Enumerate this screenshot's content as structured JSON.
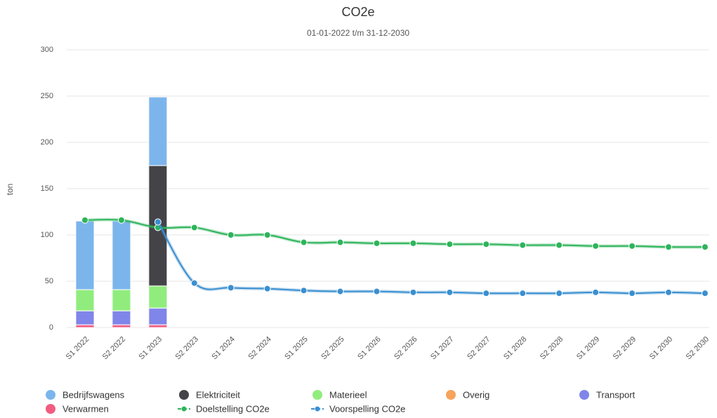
{
  "chart_data": {
    "type": "bar",
    "title": "CO2e",
    "subtitle": "01-01-2022 t/m 31-12-2030",
    "y_label": "ton",
    "categories": [
      "S1 2022",
      "S2 2022",
      "S1 2023",
      "S2 2023",
      "S1 2024",
      "S2 2024",
      "S1 2025",
      "S2 2025",
      "S1 2026",
      "S2 2026",
      "S1 2027",
      "S2 2027",
      "S1 2028",
      "S2 2028",
      "S1 2029",
      "S2 2029",
      "S1 2030",
      "S2 2030"
    ],
    "ylim": [
      0,
      300
    ],
    "yticks": [
      0,
      50,
      100,
      150,
      200,
      250,
      300
    ],
    "grid": true,
    "stacked": true,
    "legend": "bottom",
    "series": [
      {
        "name": "Bedrijfswagens",
        "type": "bar",
        "color": "#7cb5ec",
        "values": [
          74,
          74,
          74,
          null,
          null,
          null,
          null,
          null,
          null,
          null,
          null,
          null,
          null,
          null,
          null,
          null,
          null,
          null
        ]
      },
      {
        "name": "Elektriciteit",
        "type": "bar",
        "color": "#434348",
        "values": [
          0,
          0,
          130,
          null,
          null,
          null,
          null,
          null,
          null,
          null,
          null,
          null,
          null,
          null,
          null,
          null,
          null,
          null
        ]
      },
      {
        "name": "Materieel",
        "type": "bar",
        "color": "#90ed7d",
        "values": [
          23,
          23,
          24,
          null,
          null,
          null,
          null,
          null,
          null,
          null,
          null,
          null,
          null,
          null,
          null,
          null,
          null,
          null
        ]
      },
      {
        "name": "Overig",
        "type": "bar",
        "color": "#f7a35c",
        "values": [
          0,
          0,
          0,
          null,
          null,
          null,
          null,
          null,
          null,
          null,
          null,
          null,
          null,
          null,
          null,
          null,
          null,
          null
        ]
      },
      {
        "name": "Transport",
        "type": "bar",
        "color": "#8085e9",
        "values": [
          15,
          15,
          18,
          null,
          null,
          null,
          null,
          null,
          null,
          null,
          null,
          null,
          null,
          null,
          null,
          null,
          null,
          null
        ]
      },
      {
        "name": "Verwarmen",
        "type": "bar",
        "color": "#f15c80",
        "values": [
          3,
          3,
          3,
          null,
          null,
          null,
          null,
          null,
          null,
          null,
          null,
          null,
          null,
          null,
          null,
          null,
          null,
          null
        ]
      },
      {
        "name": "Doelstelling CO2e",
        "type": "line",
        "color": "#2db45a",
        "values": [
          116,
          116,
          108,
          108,
          100,
          100,
          92,
          92,
          91,
          91,
          90,
          90,
          89,
          89,
          88,
          88,
          87,
          87
        ]
      },
      {
        "name": "Voorspelling CO2e",
        "type": "line",
        "color": "#3a8fd0",
        "values": [
          null,
          null,
          114,
          48,
          43,
          42,
          40,
          39,
          39,
          38,
          38,
          37,
          37,
          37,
          38,
          37,
          38,
          37
        ]
      }
    ]
  }
}
